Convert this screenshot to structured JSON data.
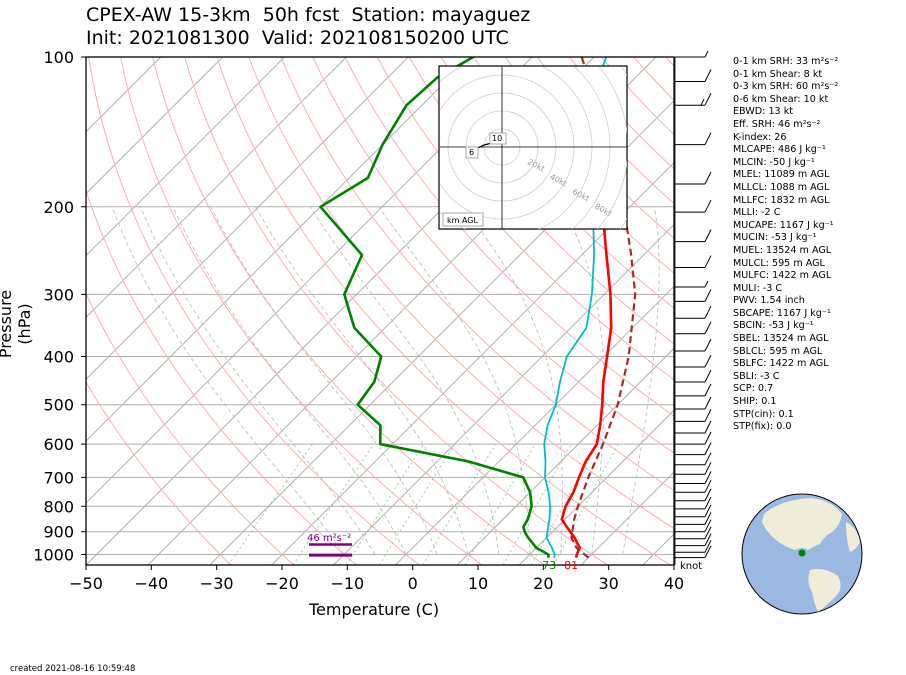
{
  "title_line1": "CPEX-AW 15-3km  50h fcst  Station: mayaguez",
  "title_line2": "Init: 2021081300  Valid: 202108150200 UTC",
  "created": "created 2021-08-16 10:59:48",
  "stats": [
    "0-1 km SRH: 33 m²s⁻²",
    "0-1 km Shear: 8 kt",
    "0-3 km SRH: 60 m²s⁻²",
    "0-6 km Shear: 10 kt",
    "EBWD: 13 kt",
    "Eff. SRH: 46 m²s⁻²",
    "K-index: 26",
    "MLCAPE: 486 J kg⁻¹",
    "MLCIN: -50 J kg⁻¹",
    "MLEL: 11089 m AGL",
    "MLLCL: 1088 m AGL",
    "MLLFC: 1832 m AGL",
    "MLLI: -2 C",
    "MUCAPE: 1167 J kg⁻¹",
    "MUCIN: -53 J kg⁻¹",
    "MUEL: 13524 m AGL",
    "MULCL: 595 m AGL",
    "MULFC: 1422 m AGL",
    "MULI: -3 C",
    "PWV: 1.54 inch",
    "SBCAPE: 1167 J kg⁻¹",
    "SBCIN: -53 J kg⁻¹",
    "SBEL: 13524 m AGL",
    "SBLCL: 595 m AGL",
    "SBLFC: 1422 m AGL",
    "SBLI: -3 C",
    "SCP: 0.7",
    "SHIP: 0.1",
    "STP(cin): 0.1",
    "STP(fix): 0.0"
  ],
  "colors": {
    "temperature": "#ff0000",
    "dewpoint": "#008000",
    "wetbulb": "#00bfc4",
    "parcel": "#a52a2a",
    "effective_layer": "#800080",
    "ocean": "#9bb8e0",
    "land": "#efedd9"
  },
  "chart_data": {
    "type": "line",
    "skew_t": true,
    "xlabel": "Temperature (C)",
    "ylabel": "Pressure (hPa)",
    "xlim": [
      -50,
      45
    ],
    "ylim": [
      1050,
      100
    ],
    "y_log_scale": true,
    "xticks": [
      "−50",
      "−40",
      "−30",
      "−20",
      "−10",
      "0",
      "10",
      "20",
      "30",
      "40"
    ],
    "yticks": [
      "100",
      "200",
      "300",
      "400",
      "500",
      "600",
      "700",
      "800",
      "900",
      "1000"
    ],
    "series": [
      {
        "key": "temperature",
        "points": [
          [
            1015,
            28
          ],
          [
            1000,
            27.6
          ],
          [
            970,
            27
          ],
          [
            925,
            24.5
          ],
          [
            880,
            21.5
          ],
          [
            850,
            19.5
          ],
          [
            800,
            18
          ],
          [
            750,
            17
          ],
          [
            700,
            15.5
          ],
          [
            650,
            14
          ],
          [
            600,
            13
          ],
          [
            550,
            10.5
          ],
          [
            500,
            7.5
          ],
          [
            450,
            4
          ],
          [
            400,
            0.5
          ],
          [
            350,
            -3.5
          ],
          [
            300,
            -9
          ],
          [
            250,
            -16
          ],
          [
            200,
            -24.5
          ],
          [
            150,
            -34
          ],
          [
            118,
            -44
          ]
        ]
      },
      {
        "key": "wetbulb",
        "points": [
          [
            1015,
            24.5
          ],
          [
            1000,
            24
          ],
          [
            970,
            22.5
          ],
          [
            925,
            20
          ],
          [
            880,
            18.5
          ],
          [
            850,
            17.5
          ],
          [
            800,
            15.5
          ],
          [
            750,
            13
          ],
          [
            700,
            10
          ],
          [
            650,
            7.5
          ],
          [
            600,
            4.5
          ],
          [
            550,
            2
          ],
          [
            500,
            0
          ],
          [
            450,
            -3
          ],
          [
            400,
            -6
          ],
          [
            350,
            -7.5
          ],
          [
            300,
            -12
          ],
          [
            250,
            -18
          ],
          [
            200,
            -26
          ],
          [
            150,
            -35
          ],
          [
            118,
            -44.5
          ],
          [
            100,
            -48
          ]
        ]
      },
      {
        "key": "dewpoint",
        "points": [
          [
            1015,
            23.5
          ],
          [
            1000,
            23
          ],
          [
            970,
            20
          ],
          [
            925,
            17
          ],
          [
            900,
            15.5
          ],
          [
            880,
            14.5
          ],
          [
            850,
            14
          ],
          [
            800,
            12.5
          ],
          [
            750,
            10
          ],
          [
            700,
            6.5
          ],
          [
            650,
            -5
          ],
          [
            600,
            -22
          ],
          [
            550,
            -25
          ],
          [
            500,
            -32
          ],
          [
            450,
            -33
          ],
          [
            400,
            -36
          ],
          [
            350,
            -45
          ],
          [
            300,
            -52
          ],
          [
            250,
            -55.5
          ],
          [
            200,
            -70
          ],
          [
            175,
            -67
          ],
          [
            150,
            -70
          ],
          [
            125,
            -72.5
          ],
          [
            110,
            -72
          ],
          [
            100,
            -69.5
          ]
        ]
      },
      {
        "key": "parcel",
        "points": [
          [
            1015,
            30
          ],
          [
            970,
            26.5
          ],
          [
            925,
            24
          ],
          [
            850,
            21.5
          ],
          [
            800,
            20
          ],
          [
            700,
            17
          ],
          [
            600,
            14
          ],
          [
            500,
            10
          ],
          [
            400,
            4
          ],
          [
            300,
            -5
          ],
          [
            250,
            -12
          ],
          [
            200,
            -21
          ],
          [
            150,
            -33
          ],
          [
            100,
            -52
          ]
        ]
      }
    ],
    "annotations": {
      "surface_temperature_f": "81",
      "surface_dewpoint_f": "73",
      "effective_layer_srh": "46 m²s⁻²",
      "barb_units": "knot"
    },
    "hodograph": {
      "ring_labels": [
        "20kt",
        "40kt",
        "60kt",
        "80kt"
      ],
      "labels": [
        "10",
        "6"
      ],
      "legend": "km AGL"
    },
    "wind_barbs": [
      {
        "p": 1015,
        "speed_kt": 10
      },
      {
        "p": 990,
        "speed_kt": 10
      },
      {
        "p": 960,
        "speed_kt": 10
      },
      {
        "p": 930,
        "speed_kt": 10
      },
      {
        "p": 900,
        "speed_kt": 10
      },
      {
        "p": 870,
        "speed_kt": 10
      },
      {
        "p": 840,
        "speed_kt": 10
      },
      {
        "p": 810,
        "speed_kt": 10
      },
      {
        "p": 780,
        "speed_kt": 10
      },
      {
        "p": 750,
        "speed_kt": 10
      },
      {
        "p": 720,
        "speed_kt": 10
      },
      {
        "p": 690,
        "speed_kt": 10
      },
      {
        "p": 660,
        "speed_kt": 10
      },
      {
        "p": 630,
        "speed_kt": 10
      },
      {
        "p": 600,
        "speed_kt": 10
      },
      {
        "p": 570,
        "speed_kt": 10
      },
      {
        "p": 540,
        "speed_kt": 10
      },
      {
        "p": 510,
        "speed_kt": 10
      },
      {
        "p": 480,
        "speed_kt": 10
      },
      {
        "p": 450,
        "speed_kt": 10
      },
      {
        "p": 420,
        "speed_kt": 10
      },
      {
        "p": 390,
        "speed_kt": 10
      },
      {
        "p": 360,
        "speed_kt": 10
      },
      {
        "p": 335,
        "speed_kt": 10
      },
      {
        "p": 310,
        "speed_kt": 10
      },
      {
        "p": 290,
        "speed_kt": 5
      },
      {
        "p": 265,
        "speed_kt": 10
      },
      {
        "p": 235,
        "speed_kt": 10
      },
      {
        "p": 205,
        "speed_kt": 10
      },
      {
        "p": 180,
        "speed_kt": 10
      },
      {
        "p": 150,
        "speed_kt": 10
      },
      {
        "p": 125,
        "speed_kt": 15
      },
      {
        "p": 112,
        "speed_kt": 10
      },
      {
        "p": 100,
        "speed_kt": 5
      }
    ]
  }
}
